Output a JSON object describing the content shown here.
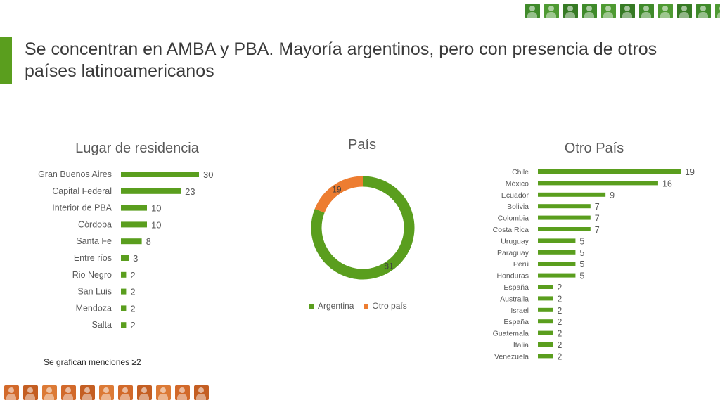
{
  "colors": {
    "green": "#5A9E1E",
    "orange": "#ED7D31",
    "accent": "#5A9E1E",
    "photo_green": "#3f8a2a",
    "photo_orange": "#d2692a"
  },
  "slide": {
    "title": "Se concentran en AMBA y PBA. Mayoría argentinos, pero con presencia de otros países latinoamericanos",
    "footnote": "Se grafican menciones ≥2",
    "top_thumbnails": [
      "photo-icon",
      "photo-icon",
      "photo-icon",
      "photo-icon",
      "photo-icon",
      "photo-icon",
      "photo-icon",
      "photo-icon",
      "photo-icon",
      "photo-icon",
      "photo-icon"
    ],
    "bottom_thumbnails": [
      "photo-icon",
      "photo-icon",
      "photo-icon",
      "photo-icon",
      "photo-icon",
      "photo-icon",
      "photo-icon",
      "photo-icon",
      "photo-icon",
      "photo-icon",
      "photo-icon"
    ]
  },
  "chart_data": [
    {
      "type": "bar",
      "orientation": "horizontal",
      "title": "Lugar de residencia",
      "categories": [
        "Gran Buenos Aires",
        "Capital Federal",
        "Interior de PBA",
        "Córdoba",
        "Santa Fe",
        "Entre ríos",
        "Rio Negro",
        "San Luis",
        "Mendoza",
        "Salta"
      ],
      "values": [
        30,
        23,
        10,
        10,
        8,
        3,
        2,
        2,
        2,
        2
      ],
      "grid": false,
      "data_labels": true
    },
    {
      "type": "pie",
      "variant": "donut",
      "title": "País",
      "categories": [
        "Argentina",
        "Otro país"
      ],
      "values": [
        81,
        19
      ],
      "legend": "bottom"
    },
    {
      "type": "bar",
      "orientation": "horizontal",
      "title": "Otro País",
      "categories": [
        "Chile",
        "México",
        "Ecuador",
        "Bolivia",
        "Colombia",
        "Costa Rica",
        "Uruguay",
        "Paraguay",
        "Perú",
        "Honduras",
        "España",
        "Australia",
        "Israel",
        "España",
        "Guatemala",
        "Italia",
        "Venezuela"
      ],
      "values": [
        19,
        16,
        9,
        7,
        7,
        7,
        5,
        5,
        5,
        5,
        2,
        2,
        2,
        2,
        2,
        2,
        2
      ],
      "grid": false,
      "data_labels": true
    }
  ]
}
